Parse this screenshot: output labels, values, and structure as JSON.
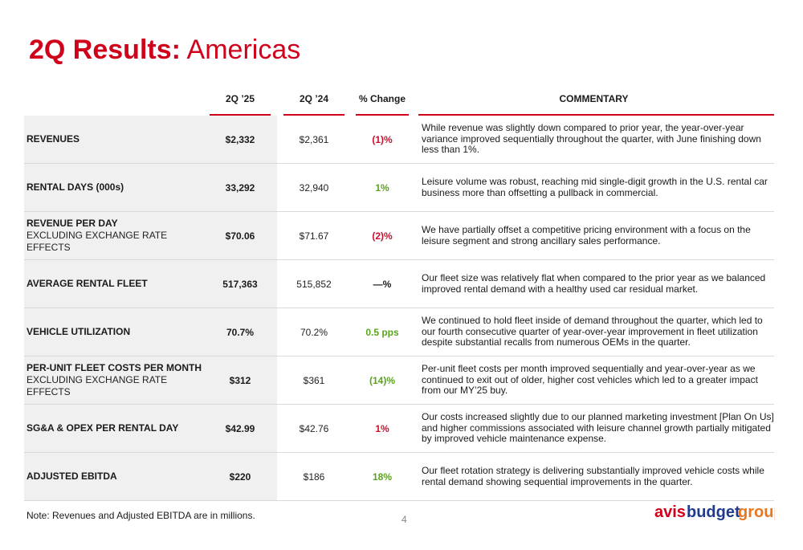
{
  "title": {
    "bold": "2Q Results:",
    "light": "Americas"
  },
  "columns": {
    "q25": "2Q ’25",
    "q24": "2Q ’24",
    "change": "% Change",
    "commentary": "COMMENTARY"
  },
  "rows": [
    {
      "name": "REVENUES",
      "sub": "",
      "q25": "$2,332",
      "q24": "$2,361",
      "change": "(1)%",
      "change_tone": "neg",
      "commentary": "While revenue was slightly down compared to prior year, the year-over-year variance improved sequentially throughout the quarter, with June finishing down less than 1%."
    },
    {
      "name": "RENTAL DAYS (000s)",
      "sub": "",
      "q25": "33,292",
      "q24": "32,940",
      "change": "1%",
      "change_tone": "pos",
      "commentary": "Leisure volume was robust, reaching mid single-digit growth in the U.S. rental car business more than offsetting a pullback in commercial."
    },
    {
      "name": "REVENUE PER DAY",
      "sub": "EXCLUDING EXCHANGE RATE EFFECTS",
      "q25": "$70.06",
      "q24": "$71.67",
      "change": "(2)%",
      "change_tone": "neg",
      "commentary": "We have partially offset a competitive pricing environment with a focus on the leisure segment and strong ancillary sales performance."
    },
    {
      "name": "AVERAGE RENTAL FLEET",
      "sub": "",
      "q25": "517,363",
      "q24": "515,852",
      "change": "—%",
      "change_tone": "flat",
      "commentary": "Our fleet size was relatively flat when compared to the prior year as we balanced improved rental demand with a healthy used car residual market."
    },
    {
      "name": "VEHICLE UTILIZATION",
      "sub": "",
      "q25": "70.7%",
      "q24": "70.2%",
      "change": "0.5 pps",
      "change_tone": "pos",
      "commentary": "We continued to hold fleet inside of demand throughout the quarter, which led to our fourth consecutive quarter of year-over-year improvement in fleet utilization despite substantial recalls from numerous OEMs in the quarter."
    },
    {
      "name": "PER-UNIT FLEET COSTS PER MONTH",
      "sub": "EXCLUDING EXCHANGE RATE EFFECTS",
      "q25": "$312",
      "q24": "$361",
      "change": "(14)%",
      "change_tone": "pos",
      "commentary": "Per-unit fleet costs per month improved sequentially and year-over-year as we continued to exit out of older, higher cost vehicles which led to a greater impact from our MY’25 buy."
    },
    {
      "name": "SG&A & OPEX PER RENTAL DAY",
      "sub": "",
      "q25": "$42.99",
      "q24": "$42.76",
      "change": "1%",
      "change_tone": "neg",
      "commentary": "Our costs increased slightly due to our planned marketing investment [Plan On Us] and higher commissions associated with leisure channel growth partially mitigated by improved vehicle maintenance expense."
    },
    {
      "name": "ADJUSTED EBITDA",
      "sub": "",
      "q25": "$220",
      "q24": "$186",
      "change": "18%",
      "change_tone": "pos",
      "commentary": "Our fleet rotation strategy is delivering substantially improved vehicle costs while rental demand showing sequential improvements in the quarter."
    }
  ],
  "note": "Note: Revenues and Adjusted EBITDA are in millions.",
  "page_number": "4",
  "logo": {
    "word1": "avis",
    "word2": "budget",
    "word3": "group"
  },
  "colors": {
    "accent_red": "#d0021b",
    "negative": "#c8102e",
    "positive": "#5aa31e",
    "logo_red": "#d0021b",
    "logo_blue": "#1f3a8f",
    "logo_orange": "#e87722"
  }
}
